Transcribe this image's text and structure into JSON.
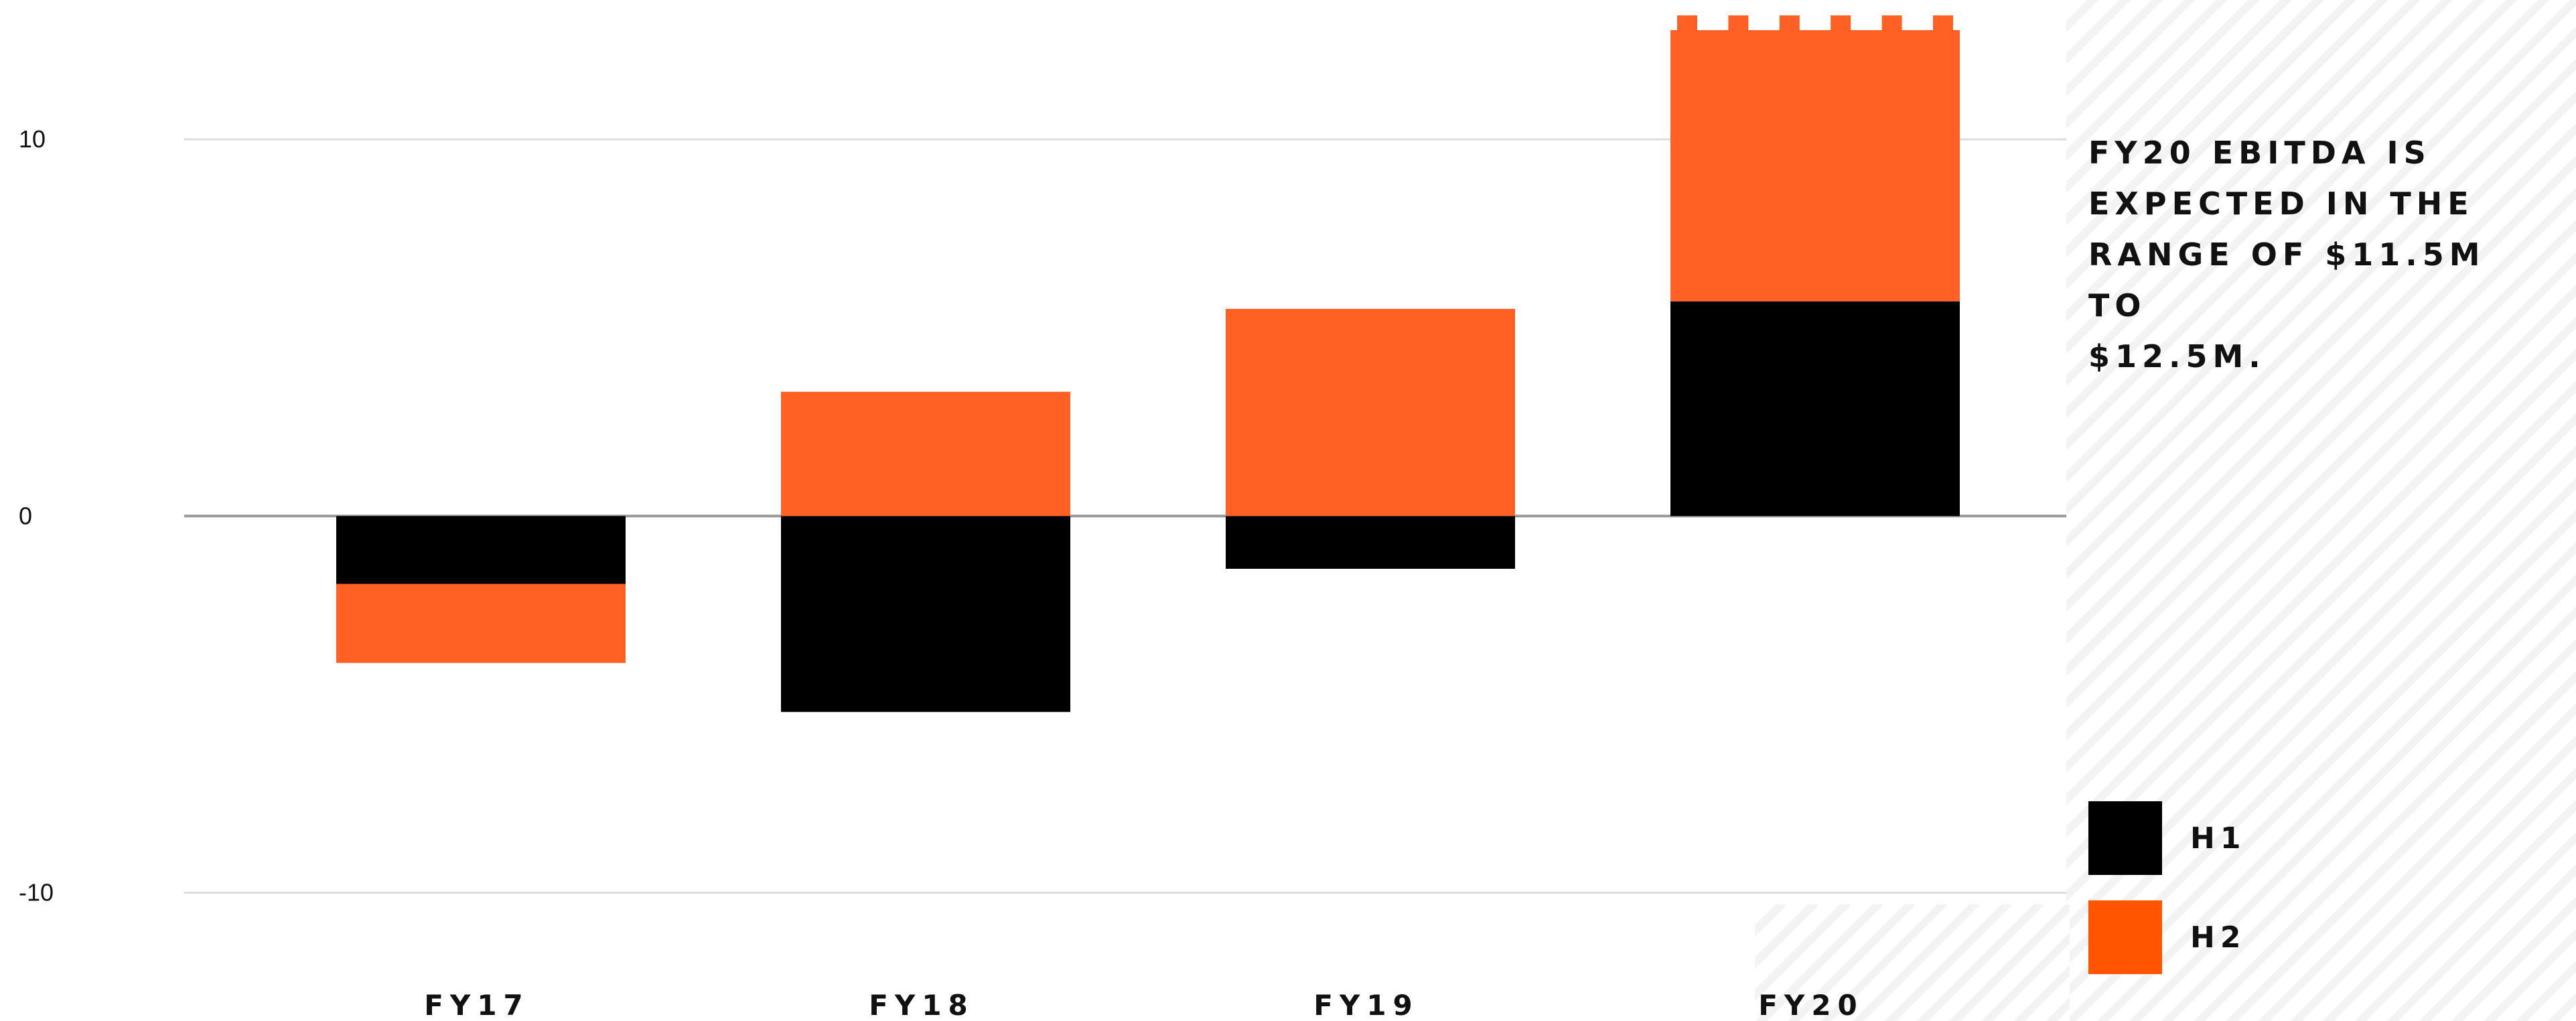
{
  "chart_data": {
    "type": "bar",
    "stacked": true,
    "categories": [
      "FY17",
      "FY18",
      "FY19",
      "FY20"
    ],
    "series": [
      {
        "name": "H1",
        "values": [
          -1.8,
          -5.2,
          -1.4,
          5.7
        ],
        "color": "#000000"
      },
      {
        "name": "H2",
        "values": [
          -2.1,
          3.3,
          5.5,
          7.2
        ],
        "color": "#ff6124"
      }
    ],
    "ylim": [
      -12,
      13.7
    ],
    "yticks": [
      {
        "value": 10,
        "label": "10"
      },
      {
        "value": 0,
        "label": "0"
      },
      {
        "value": -10,
        "label": "-10"
      }
    ],
    "grid": true,
    "legend": {
      "position": "bottom-right",
      "h2_swatch_color": "#ff5500"
    },
    "annotation": [
      "FY20 EBITDA IS",
      "EXPECTED IN THE",
      "RANGE OF $11.5M TO",
      "$12.5M."
    ],
    "title": "",
    "xlabel": "",
    "ylabel": ""
  }
}
